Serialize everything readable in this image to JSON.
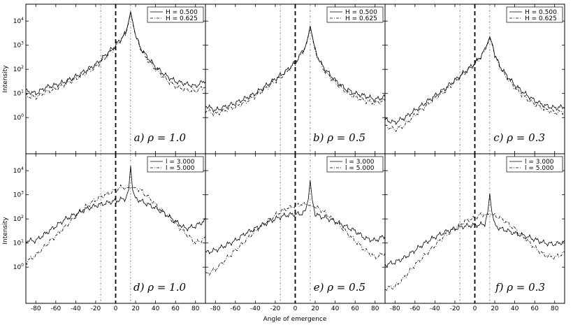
{
  "figure": {
    "xlabel": "Angle of emergence",
    "ylabel": "Intensity"
  },
  "chart_data": [
    {
      "type": "line",
      "panel_label": "a) ρ = 1.0",
      "row": 0,
      "col": 0,
      "xlim": [
        -90,
        90
      ],
      "ylim_log10": [
        -1.5,
        4.7
      ],
      "x_ticks": [
        -80,
        -60,
        -40,
        -20,
        0,
        20,
        40,
        60,
        80
      ],
      "y_ticks_log10": [
        0,
        1,
        2,
        3,
        4
      ],
      "y_tick_labels": [
        "10^0",
        "10^1",
        "10^2",
        "10^3",
        "10^4"
      ],
      "vlines": [
        {
          "x": -15,
          "style": "dash-dot"
        },
        {
          "x": 0,
          "style": "dashed-bold"
        },
        {
          "x": 15,
          "style": "dash-dot"
        }
      ],
      "legend_position": "top-right",
      "series": [
        {
          "name": "H = 0.500",
          "style": "solid",
          "x": [
            -90,
            -80,
            -70,
            -60,
            -50,
            -40,
            -30,
            -20,
            -10,
            0,
            5,
            10,
            12,
            15,
            18,
            20,
            25,
            30,
            40,
            50,
            60,
            70,
            80,
            90
          ],
          "log10y": [
            1.1,
            1.0,
            1.25,
            1.35,
            1.5,
            1.7,
            1.95,
            2.2,
            2.6,
            3.0,
            3.25,
            3.5,
            3.8,
            4.4,
            3.8,
            3.4,
            2.9,
            2.6,
            2.1,
            1.75,
            1.5,
            1.4,
            1.3,
            1.55
          ]
        },
        {
          "name": "H = 0.625",
          "style": "dashed",
          "x": [
            -90,
            -80,
            -70,
            -60,
            -50,
            -40,
            -30,
            -20,
            -10,
            0,
            5,
            10,
            12,
            15,
            18,
            20,
            25,
            30,
            40,
            50,
            60,
            70,
            80,
            90
          ],
          "log10y": [
            0.9,
            0.85,
            1.05,
            1.2,
            1.4,
            1.6,
            1.85,
            2.1,
            2.5,
            2.95,
            3.2,
            3.45,
            3.75,
            4.35,
            3.75,
            3.35,
            2.85,
            2.5,
            2.0,
            1.6,
            1.3,
            1.15,
            1.1,
            1.3
          ]
        }
      ]
    },
    {
      "type": "line",
      "panel_label": "b) ρ = 0.5",
      "row": 0,
      "col": 1,
      "xlim": [
        -90,
        90
      ],
      "ylim_log10": [
        -1.5,
        4.7
      ],
      "x_ticks": [
        -80,
        -60,
        -40,
        -20,
        0,
        20,
        40,
        60,
        80
      ],
      "vlines": [
        {
          "x": -15,
          "style": "dash-dot"
        },
        {
          "x": 0,
          "style": "dashed-bold"
        },
        {
          "x": 15,
          "style": "dash-dot"
        }
      ],
      "legend_position": "top-right",
      "series": [
        {
          "name": "H = 0.500",
          "style": "solid",
          "x": [
            -90,
            -80,
            -70,
            -60,
            -50,
            -40,
            -30,
            -20,
            -10,
            0,
            5,
            10,
            12,
            15,
            18,
            20,
            25,
            30,
            40,
            50,
            60,
            70,
            80,
            90
          ],
          "log10y": [
            0.5,
            0.3,
            0.45,
            0.6,
            0.8,
            1.0,
            1.3,
            1.6,
            1.9,
            2.3,
            2.6,
            2.95,
            3.2,
            3.8,
            3.2,
            2.8,
            2.3,
            2.0,
            1.55,
            1.2,
            1.0,
            0.9,
            0.75,
            0.85
          ]
        },
        {
          "name": "H = 0.625",
          "style": "dashed",
          "x": [
            -90,
            -80,
            -70,
            -60,
            -50,
            -40,
            -30,
            -20,
            -10,
            0,
            5,
            10,
            12,
            15,
            18,
            20,
            25,
            30,
            40,
            50,
            60,
            70,
            80,
            90
          ],
          "log10y": [
            0.3,
            0.15,
            0.3,
            0.45,
            0.65,
            0.9,
            1.2,
            1.5,
            1.85,
            2.25,
            2.55,
            2.9,
            3.15,
            3.75,
            3.15,
            2.75,
            2.25,
            1.9,
            1.45,
            1.1,
            0.85,
            0.7,
            0.6,
            0.7
          ]
        }
      ]
    },
    {
      "type": "line",
      "panel_label": "c) ρ = 0.3",
      "row": 0,
      "col": 2,
      "xlim": [
        -90,
        90
      ],
      "ylim_log10": [
        -1.5,
        4.7
      ],
      "x_ticks": [
        -80,
        -60,
        -40,
        -20,
        0,
        20,
        40,
        60,
        80
      ],
      "vlines": [
        {
          "x": -15,
          "style": "dash-dot"
        },
        {
          "x": 0,
          "style": "dashed-bold"
        },
        {
          "x": 15,
          "style": "dash-dot"
        }
      ],
      "legend_position": "top-right",
      "series": [
        {
          "name": "H = 0.500",
          "style": "solid",
          "x": [
            -90,
            -80,
            -70,
            -60,
            -50,
            -40,
            -30,
            -20,
            -10,
            0,
            5,
            10,
            12,
            15,
            18,
            20,
            25,
            30,
            40,
            50,
            60,
            70,
            80,
            90
          ],
          "log10y": [
            -0.1,
            -0.2,
            0.0,
            0.3,
            0.6,
            0.9,
            1.2,
            1.55,
            1.9,
            2.25,
            2.5,
            2.8,
            3.0,
            3.35,
            3.0,
            2.6,
            2.15,
            1.85,
            1.35,
            1.0,
            0.7,
            0.5,
            0.4,
            0.45
          ]
        },
        {
          "name": "H = 0.625",
          "style": "dashed",
          "x": [
            -90,
            -80,
            -70,
            -60,
            -50,
            -40,
            -30,
            -20,
            -10,
            0,
            5,
            10,
            12,
            15,
            18,
            20,
            25,
            30,
            40,
            50,
            60,
            70,
            80,
            90
          ],
          "log10y": [
            -0.35,
            -0.5,
            -0.3,
            0.1,
            0.45,
            0.8,
            1.1,
            1.5,
            1.85,
            2.2,
            2.45,
            2.75,
            2.95,
            3.3,
            2.95,
            2.55,
            2.1,
            1.75,
            1.25,
            0.85,
            0.55,
            0.35,
            0.2,
            0.25
          ]
        }
      ]
    },
    {
      "type": "line",
      "panel_label": "d) ρ = 1.0",
      "row": 1,
      "col": 0,
      "xlim": [
        -90,
        90
      ],
      "ylim_log10": [
        -1.5,
        4.7
      ],
      "x_ticks": [
        -80,
        -60,
        -40,
        -20,
        0,
        20,
        40,
        60,
        80
      ],
      "y_ticks_log10": [
        0,
        1,
        2,
        3,
        4
      ],
      "y_tick_labels": [
        "10^0",
        "10^1",
        "10^2",
        "10^3",
        "10^4"
      ],
      "vlines": [
        {
          "x": -15,
          "style": "dash-dot"
        },
        {
          "x": 0,
          "style": "dashed-bold"
        },
        {
          "x": 15,
          "style": "dash-dot"
        }
      ],
      "legend_position": "top-right",
      "series": [
        {
          "name": "l = 3.000",
          "style": "solid",
          "x": [
            -90,
            -80,
            -70,
            -60,
            -50,
            -40,
            -30,
            -20,
            -10,
            0,
            5,
            10,
            13,
            15,
            17,
            20,
            25,
            30,
            40,
            50,
            60,
            70,
            80,
            90
          ],
          "log10y": [
            1.1,
            1.1,
            1.4,
            1.7,
            2.0,
            2.2,
            2.4,
            2.55,
            2.65,
            2.75,
            2.8,
            2.85,
            3.2,
            4.2,
            3.2,
            2.85,
            2.75,
            2.65,
            2.45,
            2.2,
            1.9,
            1.6,
            1.7,
            1.95
          ]
        },
        {
          "name": "l = 5.000",
          "style": "dashed",
          "x": [
            -90,
            -80,
            -70,
            -60,
            -50,
            -40,
            -30,
            -20,
            -10,
            0,
            5,
            10,
            15,
            20,
            25,
            30,
            40,
            50,
            60,
            70,
            80,
            90
          ],
          "log10y": [
            0.2,
            0.5,
            0.9,
            1.3,
            1.7,
            2.1,
            2.5,
            2.8,
            3.0,
            3.2,
            3.3,
            3.3,
            3.3,
            3.3,
            3.2,
            3.0,
            2.6,
            2.2,
            1.8,
            1.4,
            1.0,
            1.2
          ]
        }
      ]
    },
    {
      "type": "line",
      "panel_label": "e) ρ = 0.5",
      "row": 1,
      "col": 1,
      "xlim": [
        -90,
        90
      ],
      "ylim_log10": [
        -1.5,
        4.7
      ],
      "x_ticks": [
        -80,
        -60,
        -40,
        -20,
        0,
        20,
        40,
        60,
        80
      ],
      "vlines": [
        {
          "x": -15,
          "style": "dash-dot"
        },
        {
          "x": 0,
          "style": "dashed-bold"
        },
        {
          "x": 15,
          "style": "dash-dot"
        }
      ],
      "legend_position": "top-right",
      "series": [
        {
          "name": "l = 3.000",
          "style": "solid",
          "x": [
            -90,
            -80,
            -70,
            -60,
            -50,
            -40,
            -30,
            -20,
            -10,
            0,
            5,
            10,
            13,
            15,
            17,
            20,
            25,
            30,
            40,
            50,
            60,
            70,
            80,
            90
          ],
          "log10y": [
            0.6,
            0.7,
            0.9,
            1.1,
            1.4,
            1.6,
            1.8,
            2.0,
            2.15,
            2.2,
            2.2,
            2.3,
            2.8,
            3.6,
            2.8,
            2.2,
            2.1,
            2.05,
            1.9,
            1.7,
            1.5,
            1.2,
            1.1,
            1.3
          ]
        },
        {
          "name": "l = 5.000",
          "style": "dashed",
          "x": [
            -90,
            -80,
            -70,
            -60,
            -50,
            -40,
            -30,
            -20,
            -10,
            0,
            5,
            10,
            15,
            20,
            25,
            30,
            40,
            50,
            60,
            70,
            80,
            90
          ],
          "log10y": [
            -0.3,
            -0.1,
            0.3,
            0.7,
            1.1,
            1.5,
            1.85,
            2.15,
            2.4,
            2.55,
            2.6,
            2.6,
            2.55,
            2.5,
            2.4,
            2.25,
            1.9,
            1.5,
            1.1,
            0.7,
            0.4,
            0.6
          ]
        }
      ]
    },
    {
      "type": "line",
      "panel_label": "f) ρ = 0.3",
      "row": 1,
      "col": 2,
      "xlim": [
        -90,
        90
      ],
      "ylim_log10": [
        -1.5,
        4.7
      ],
      "x_ticks": [
        -80,
        -60,
        -40,
        -20,
        0,
        20,
        40,
        60,
        80
      ],
      "vlines": [
        {
          "x": -15,
          "style": "dash-dot"
        },
        {
          "x": 0,
          "style": "dashed-bold"
        },
        {
          "x": 15,
          "style": "dash-dot"
        }
      ],
      "legend_position": "top-right",
      "series": [
        {
          "name": "l = 3.000",
          "style": "solid",
          "x": [
            -90,
            -80,
            -70,
            -60,
            -50,
            -40,
            -30,
            -20,
            -10,
            0,
            5,
            10,
            13,
            15,
            17,
            20,
            25,
            30,
            40,
            50,
            60,
            70,
            80,
            90
          ],
          "log10y": [
            0.1,
            0.2,
            0.4,
            0.7,
            1.0,
            1.25,
            1.45,
            1.6,
            1.7,
            1.75,
            1.75,
            1.8,
            2.3,
            3.05,
            2.3,
            1.75,
            1.6,
            1.55,
            1.4,
            1.3,
            1.15,
            1.0,
            0.95,
            1.05
          ]
        },
        {
          "name": "l = 5.000",
          "style": "dashed",
          "x": [
            -90,
            -80,
            -70,
            -60,
            -50,
            -40,
            -30,
            -20,
            -10,
            0,
            5,
            10,
            15,
            20,
            25,
            30,
            40,
            50,
            60,
            70,
            80,
            90
          ],
          "log10y": [
            -0.9,
            -0.8,
            -0.4,
            0.1,
            0.5,
            0.9,
            1.3,
            1.6,
            1.9,
            2.05,
            2.15,
            2.2,
            2.2,
            2.15,
            2.05,
            1.9,
            1.6,
            1.2,
            0.8,
            0.5,
            0.4,
            0.6
          ]
        }
      ]
    }
  ]
}
